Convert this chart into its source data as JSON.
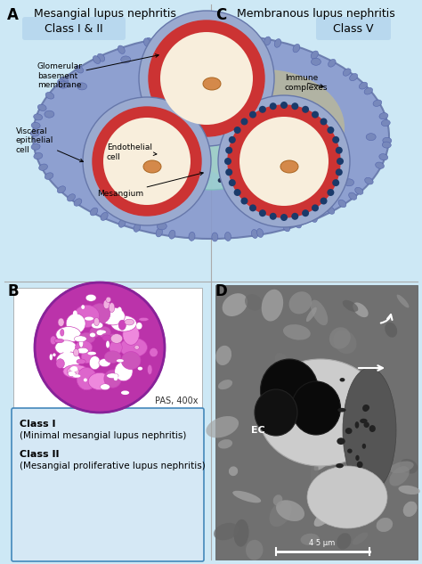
{
  "bg_light_blue": "#cde8f5",
  "cell_outer_color": "#8899cc",
  "cell_border_color": "#cc3333",
  "cell_inner_color": "#f8eedc",
  "mesangium_color": "#9ed4d0",
  "nuclear_color": "#d4894a",
  "immune_deposit_color": "#1a3a6a",
  "foot_process_color": "#7788bb",
  "yellow_highlight": "#e8d060",
  "box_border": "#4488bb",
  "box_bg": "#d5e8f5",
  "class_badge_bg": "#b8d8ee",
  "panel_A_title": "Mesangial lupus nephritis",
  "panel_C_title": "Membranous lupus nephritis",
  "class_I_II_label": "Class I & II",
  "class_V_label": "Class V",
  "panel_A_label": "A",
  "panel_B_label": "B",
  "panel_C_label": "C",
  "panel_D_label": "D",
  "gbm_label": "Glomerular\nbasement\nmembrane",
  "vep_label": "Visceral\nepithelial\ncell",
  "endo_label": "Endothelial\ncell",
  "mes_label": "Mesangium",
  "ic_label": "Immune\ncomplexes",
  "pas_label": "PAS, 400x",
  "class1_line1": "Class I",
  "class1_line2": "(Minimal mesangial lupus nephritis)",
  "class2_line1": "Class II",
  "class2_line2": "(Mesangial proliferative lupus nephritis)",
  "em_label": "EC",
  "scale_bar_label": "4 5 μm"
}
